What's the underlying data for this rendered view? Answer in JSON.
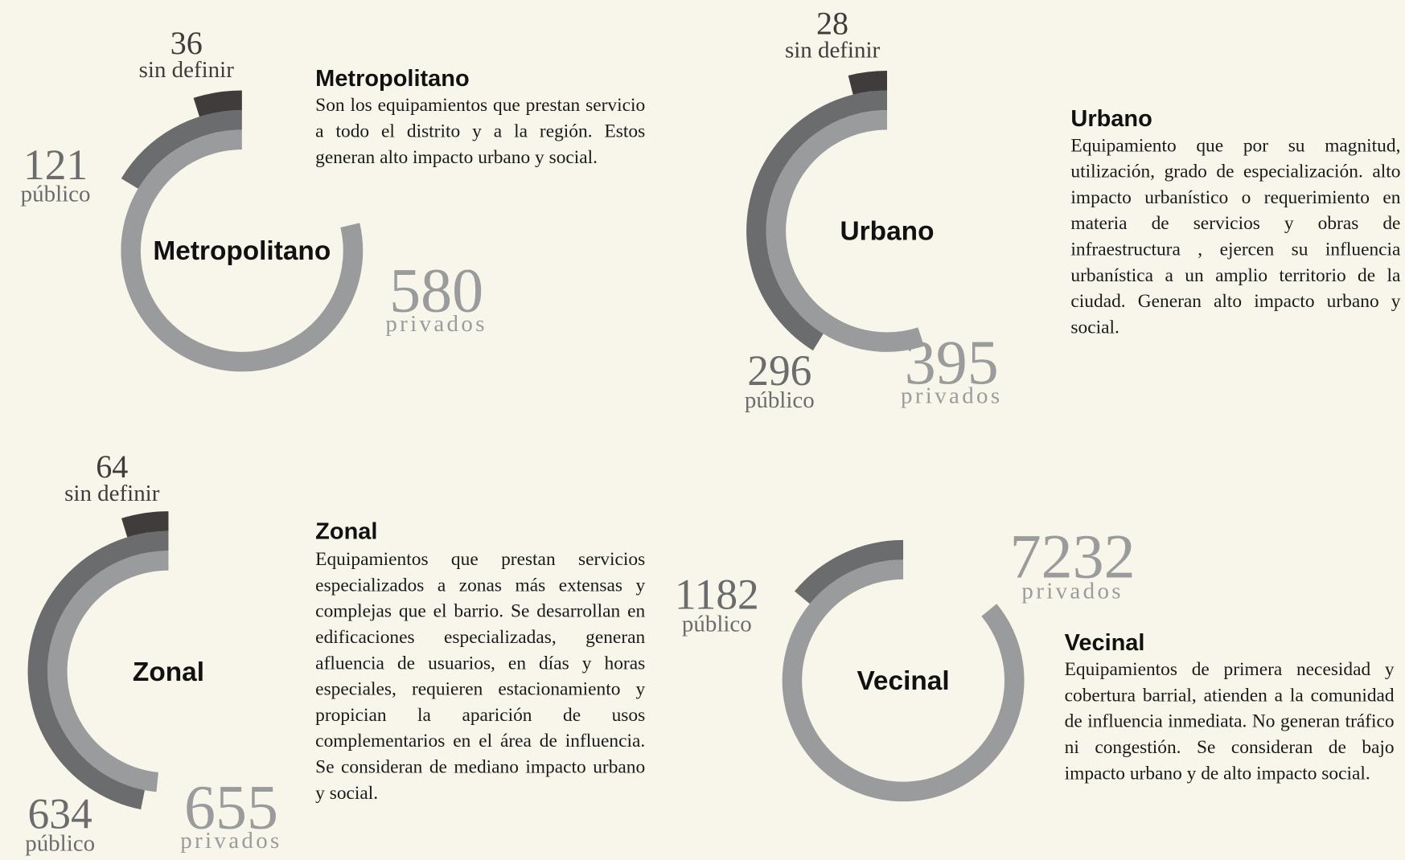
{
  "chart_data": [
    {
      "type": "radial",
      "title": "Metropolitano",
      "description": "Son los equipamientos que prestan servicio a todo el distrito y a la región. Estos generan alto impacto urbano y social.",
      "categories": [
        "privados",
        "público",
        "sin definir"
      ],
      "values": [
        580,
        121,
        36
      ],
      "colors": [
        "#9a9b9c",
        "#6b6c6d",
        "#403c3c"
      ]
    },
    {
      "type": "radial",
      "title": "Urbano",
      "description": "Equipamiento que por su magnitud, utilización, grado de especialización. alto impacto urbanístico o requerimiento en materia de servicios y obras de infraestructura , ejercen su influencia urbanística a un amplio territorio de la ciudad. Generan alto impacto urbano y social.",
      "categories": [
        "privados",
        "público",
        "sin definir"
      ],
      "values": [
        395,
        296,
        28
      ],
      "colors": [
        "#9a9b9c",
        "#6b6c6d",
        "#403c3c"
      ]
    },
    {
      "type": "radial",
      "title": "Zonal",
      "description": "Equipamientos que prestan servicios especializados a zonas más extensas y complejas que el barrio. Se desarrollan en edificaciones especializadas, generan afluencia de usuarios, en días y horas especiales, requieren estacionamiento y propician la aparición de usos complementarios en el área de influencia. Se consideran de mediano impacto urbano y social.",
      "categories": [
        "privados",
        "público",
        "sin definir"
      ],
      "values": [
        655,
        634,
        64
      ],
      "colors": [
        "#9a9b9c",
        "#6b6c6d",
        "#403c3c"
      ]
    },
    {
      "type": "radial",
      "title": "Vecinal",
      "description": "Equipamientos de primera necesidad y cobertura barrial, atienden a la comunidad de influencia inmediata. No generan tráfico ni congestión. Se consideran de bajo impacto urbano y de alto impacto social.",
      "categories": [
        "privados",
        "público"
      ],
      "values": [
        7232,
        1182
      ],
      "colors": [
        "#9a9b9c",
        "#6b6c6d"
      ]
    }
  ]
}
